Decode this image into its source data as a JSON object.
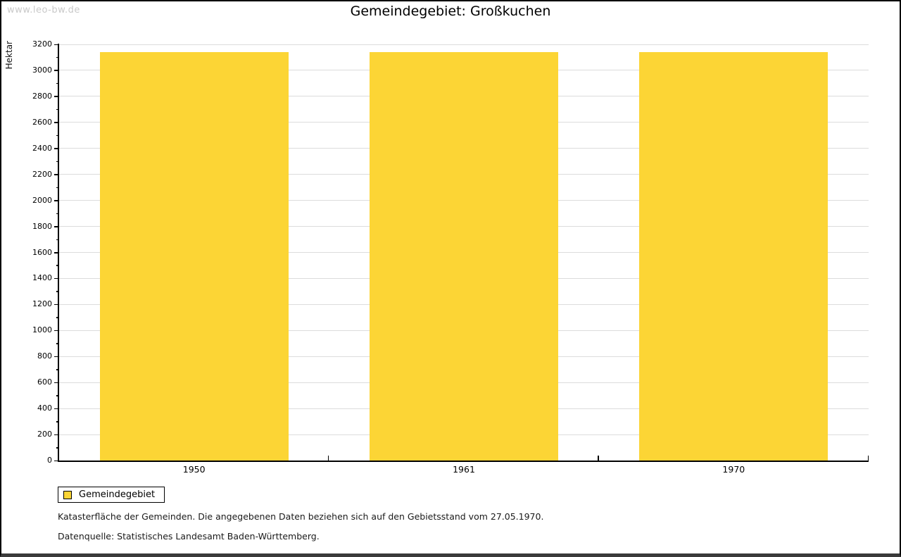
{
  "watermark": "www.leo-bw.de",
  "title": "Gemeindegebiet: Großkuchen",
  "legend": {
    "items": [
      {
        "label": "Gemeindegebiet",
        "color": "#FCD535"
      }
    ]
  },
  "footer": {
    "line1": "Katasterfläche der Gemeinden. Die angegebenen Daten beziehen sich auf den Gebietsstand vom 27.05.1970.",
    "line2": "Datenquelle: Statistisches Landesamt Baden-Württemberg."
  },
  "chart_data": {
    "type": "bar",
    "title": "Gemeindegebiet: Großkuchen",
    "categories": [
      "1950",
      "1961",
      "1970"
    ],
    "series": [
      {
        "name": "Gemeindegebiet",
        "values": [
          3140,
          3140,
          3140
        ],
        "color": "#FCD535"
      }
    ],
    "xlabel": "",
    "ylabel": "Hektar",
    "ylim": [
      0,
      3200
    ],
    "ytick_major": 200,
    "ytick_minor": 100,
    "grid": true,
    "legend_position": "bottom-left",
    "colors": {
      "bar": "#FCD535",
      "grid": "#dcdcdc",
      "axis": "#000000",
      "watermark": "#c9c9c9"
    }
  }
}
